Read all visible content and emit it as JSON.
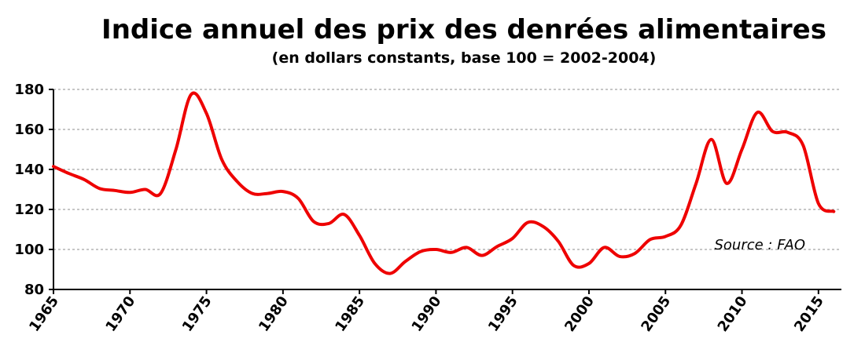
{
  "chart_data": {
    "type": "line",
    "title": "Indice annuel des prix des denrées alimentaires",
    "subtitle": "(en dollars constants, base 100 = 2002-2004)",
    "source_note": "Source : FAO",
    "xlabel": "",
    "ylabel": "",
    "xlim": [
      1965,
      2016.5
    ],
    "ylim": [
      80,
      180
    ],
    "yticks": [
      80,
      100,
      120,
      140,
      160,
      180
    ],
    "xticks": [
      1965,
      1970,
      1975,
      1980,
      1985,
      1990,
      1995,
      2000,
      2005,
      2010,
      2015
    ],
    "grid": "horizontal-dashed",
    "line_color": "#ee0000",
    "series": [
      {
        "name": "",
        "x": [
          1965,
          1966,
          1967,
          1968,
          1969,
          1970,
          1971,
          1972,
          1973,
          1974,
          1975,
          1976,
          1977,
          1978,
          1979,
          1980,
          1981,
          1982,
          1983,
          1984,
          1985,
          1986,
          1987,
          1988,
          1989,
          1990,
          1991,
          1992,
          1993,
          1994,
          1995,
          1996,
          1997,
          1998,
          1999,
          2000,
          2001,
          2002,
          2003,
          2004,
          2005,
          2006,
          2007,
          2008,
          2009,
          2010,
          2011,
          2012,
          2013,
          2014,
          2015,
          2016
        ],
        "y": [
          141.5,
          138,
          135,
          130.5,
          129.5,
          128.5,
          130,
          128,
          150,
          177.5,
          168,
          145,
          134,
          128,
          128,
          129,
          125.5,
          114,
          113,
          117.5,
          107,
          93,
          88,
          94,
          99,
          100,
          98.5,
          101,
          97,
          101.5,
          105.5,
          113.5,
          111.5,
          104,
          92,
          93,
          101,
          96.5,
          98,
          105,
          106.5,
          112,
          133,
          155,
          133,
          150,
          168.5,
          159,
          158.5,
          152,
          123,
          119
        ]
      }
    ]
  }
}
